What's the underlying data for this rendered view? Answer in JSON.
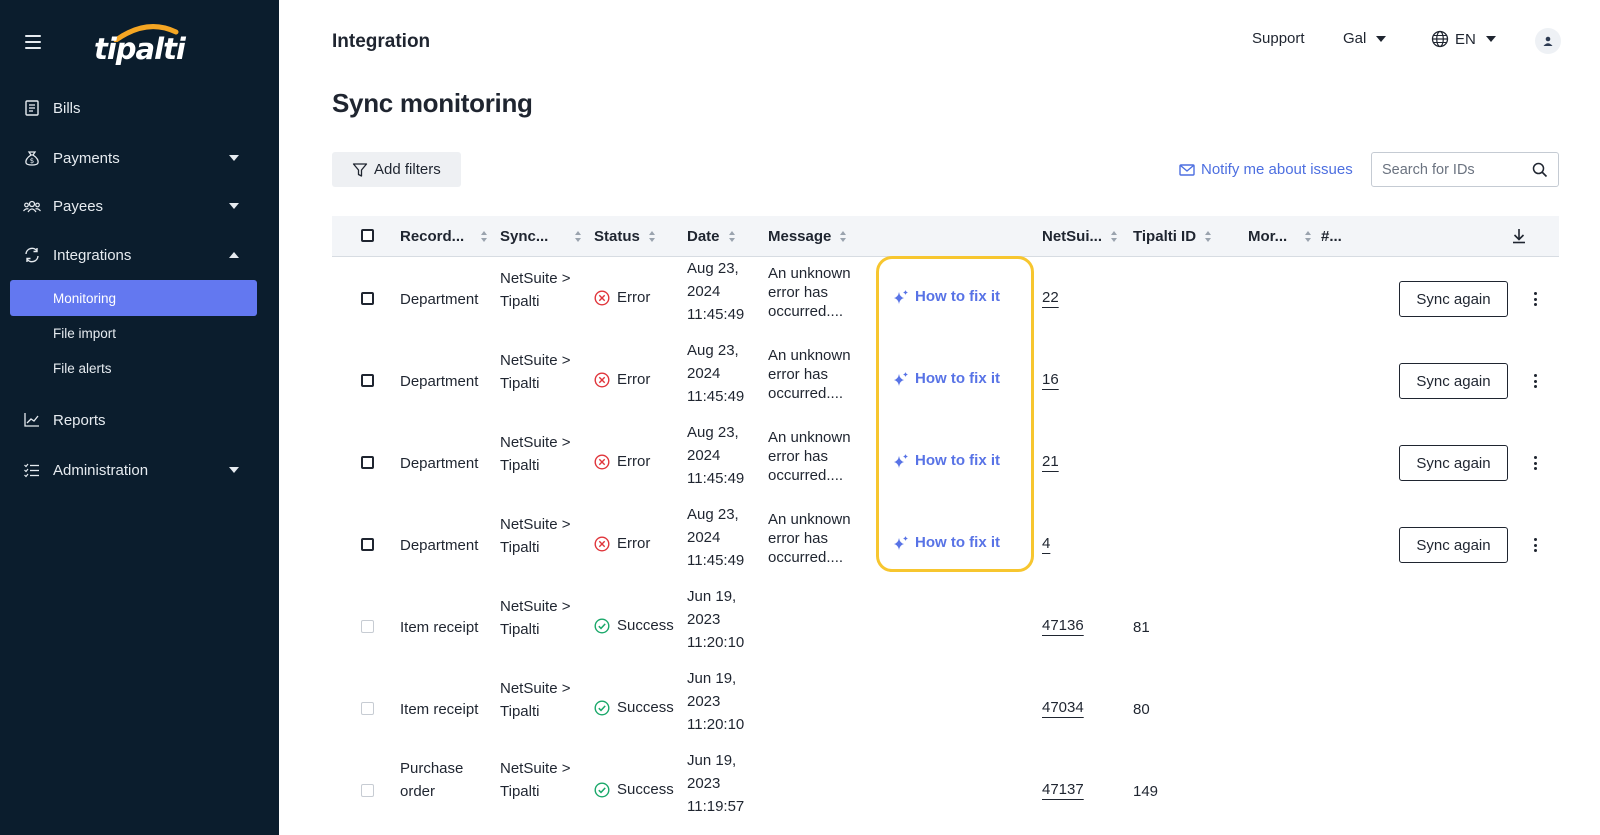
{
  "brand": {
    "name": "tipalti",
    "arc_color": "#f5a623"
  },
  "colors": {
    "sidebar_bg": "#0b1d2d",
    "active_item": "#6378f0",
    "link": "#4d6fe0",
    "error": "#e0353b",
    "success": "#1aa86a",
    "highlight": "#f7c62f"
  },
  "sidebar": {
    "menu_icon": "hamburger-icon",
    "items": [
      {
        "label": "Bills",
        "icon": "receipt-icon"
      },
      {
        "label": "Payments",
        "icon": "money-bag-icon"
      },
      {
        "label": "Payees",
        "icon": "users-icon"
      },
      {
        "label": "Integrations",
        "icon": "sync-icon"
      },
      {
        "label": "Reports",
        "icon": "chart-icon"
      },
      {
        "label": "Administration",
        "icon": "list-check-icon"
      }
    ],
    "sub_items": [
      {
        "label": "Monitoring",
        "active": true
      },
      {
        "label": "File import",
        "active": false
      },
      {
        "label": "File alerts",
        "active": false
      }
    ]
  },
  "header": {
    "title": "Integration",
    "support": "Support",
    "user": "Gal",
    "language": "EN"
  },
  "page": {
    "title": "Sync monitoring",
    "add_filters": "Add filters",
    "notify": "Notify me about issues",
    "search_placeholder": "Search for IDs"
  },
  "table": {
    "columns": [
      "Record...",
      "Sync...",
      "Status",
      "Date",
      "Message",
      "NetSui...",
      "Tipalti ID",
      "Mor...",
      "#..."
    ],
    "rows": [
      {
        "record": "Department",
        "sync_1": "NetSuite >",
        "sync_2": "Tipalti",
        "status": "Error",
        "date_1": "Aug 23,",
        "date_2": "2024",
        "date_3": "11:45:49",
        "msg_1": "An unknown",
        "msg_2": "error has",
        "msg_3": "occurred....",
        "fix": "How to fix it",
        "netsuite_id": "22",
        "tipalti_id": "",
        "action": "Sync again"
      },
      {
        "record": "Department",
        "sync_1": "NetSuite >",
        "sync_2": "Tipalti",
        "status": "Error",
        "date_1": "Aug 23,",
        "date_2": "2024",
        "date_3": "11:45:49",
        "msg_1": "An unknown",
        "msg_2": "error has",
        "msg_3": "occurred....",
        "fix": "How to fix it",
        "netsuite_id": "16",
        "tipalti_id": "",
        "action": "Sync again"
      },
      {
        "record": "Department",
        "sync_1": "NetSuite >",
        "sync_2": "Tipalti",
        "status": "Error",
        "date_1": "Aug 23,",
        "date_2": "2024",
        "date_3": "11:45:49",
        "msg_1": "An unknown",
        "msg_2": "error has",
        "msg_3": "occurred....",
        "fix": "How to fix it",
        "netsuite_id": "21",
        "tipalti_id": "",
        "action": "Sync again"
      },
      {
        "record": "Department",
        "sync_1": "NetSuite >",
        "sync_2": "Tipalti",
        "status": "Error",
        "date_1": "Aug 23,",
        "date_2": "2024",
        "date_3": "11:45:49",
        "msg_1": "An unknown",
        "msg_2": "error has",
        "msg_3": "occurred....",
        "fix": "How to fix it",
        "netsuite_id": "4",
        "tipalti_id": "",
        "action": "Sync again"
      },
      {
        "record": "Item receipt",
        "record_2": "",
        "sync_1": "NetSuite >",
        "sync_2": "Tipalti",
        "status": "Success",
        "date_1": "Jun 19,",
        "date_2": "2023",
        "date_3": "11:20:10",
        "netsuite_id": "47136",
        "tipalti_id": "81"
      },
      {
        "record": "Item receipt",
        "record_2": "",
        "sync_1": "NetSuite >",
        "sync_2": "Tipalti",
        "status": "Success",
        "date_1": "Jun 19,",
        "date_2": "2023",
        "date_3": "11:20:10",
        "netsuite_id": "47034",
        "tipalti_id": "80"
      },
      {
        "record": "Purchase",
        "record_2": "order",
        "sync_1": "NetSuite >",
        "sync_2": "Tipalti",
        "status": "Success",
        "date_1": "Jun 19,",
        "date_2": "2023",
        "date_3": "11:19:57",
        "netsuite_id": "47137",
        "tipalti_id": "149"
      }
    ]
  }
}
